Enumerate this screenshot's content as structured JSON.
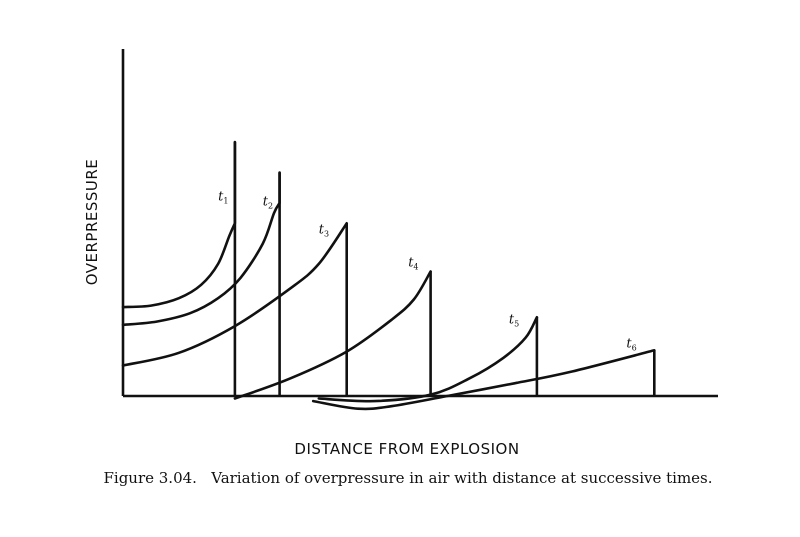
{
  "chart_data": {
    "type": "line",
    "title": "",
    "xlabel": "DISTANCE FROM EXPLOSION",
    "ylabel": "OVERPRESSURE",
    "caption": "Figure 3.04.   Variation of overpressure in air with distance at successive times.",
    "xlim": [
      0,
      100
    ],
    "ylim": [
      -4,
      100
    ],
    "grid": false,
    "legend": "none",
    "series": [
      {
        "name": "t₁",
        "symbol": "t",
        "subscript": "1",
        "front_x": 20,
        "peak_y": 100,
        "label_x": 17,
        "label_y": 77,
        "points": [
          [
            0,
            35
          ],
          [
            5,
            35.6
          ],
          [
            10,
            38.5
          ],
          [
            14,
            43.8
          ],
          [
            17,
            52
          ],
          [
            19,
            63
          ],
          [
            20,
            68
          ],
          [
            20,
            100
          ]
        ]
      },
      {
        "name": "t₂",
        "symbol": "t",
        "subscript": "2",
        "front_x": 28,
        "peak_y": 88,
        "label_x": 25,
        "label_y": 75,
        "points": [
          [
            0,
            28
          ],
          [
            6,
            29.3
          ],
          [
            12,
            32.6
          ],
          [
            17,
            38.5
          ],
          [
            21,
            46.5
          ],
          [
            25,
            60
          ],
          [
            27,
            72
          ],
          [
            28,
            76
          ],
          [
            28,
            88
          ]
        ]
      },
      {
        "name": "t₃",
        "symbol": "t",
        "subscript": "3",
        "front_x": 40,
        "peak_y": 68,
        "label_x": 35,
        "label_y": 64,
        "points": [
          [
            0,
            12
          ],
          [
            10,
            17
          ],
          [
            20,
            27.5
          ],
          [
            30,
            42.5
          ],
          [
            35,
            52
          ],
          [
            40,
            68
          ]
        ]
      },
      {
        "name": "t₄",
        "symbol": "t",
        "subscript": "4",
        "front_x": 55,
        "peak_y": 49,
        "label_x": 51,
        "label_y": 51,
        "points": [
          [
            20,
            -1
          ],
          [
            30,
            7
          ],
          [
            40,
            17.5
          ],
          [
            48,
            30
          ],
          [
            52,
            38
          ],
          [
            55,
            49
          ]
        ]
      },
      {
        "name": "t₅",
        "symbol": "t",
        "subscript": "5",
        "front_x": 74,
        "peak_y": 31,
        "label_x": 69,
        "label_y": 28.5,
        "points": [
          [
            35,
            -1
          ],
          [
            45,
            -2
          ],
          [
            55,
            0.5
          ],
          [
            62,
            7
          ],
          [
            68,
            15
          ],
          [
            72,
            23
          ],
          [
            74,
            31
          ]
        ]
      },
      {
        "name": "t₆",
        "symbol": "t",
        "subscript": "6",
        "front_x": 95,
        "peak_y": 18,
        "label_x": 90,
        "label_y": 19,
        "points": [
          [
            34,
            -2
          ],
          [
            42,
            -5
          ],
          [
            48,
            -4
          ],
          [
            58,
            0
          ],
          [
            70,
            5
          ],
          [
            80,
            9.5
          ],
          [
            95,
            18
          ]
        ]
      }
    ]
  }
}
